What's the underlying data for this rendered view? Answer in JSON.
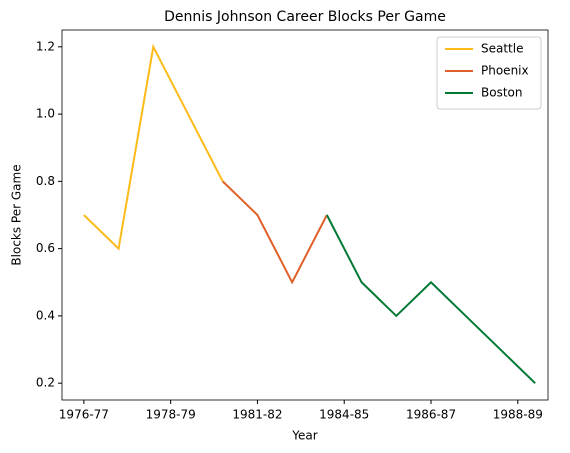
{
  "chart_data": {
    "type": "line",
    "title": "Dennis Johnson Career Blocks Per Game",
    "xlabel": "Year",
    "ylabel": "Blocks Per Game",
    "series": [
      {
        "name": "Seattle",
        "color": "#fdbb1a",
        "x": [
          0,
          1,
          2,
          3,
          4
        ],
        "values": [
          0.7,
          0.6,
          1.2,
          1.0,
          0.8
        ]
      },
      {
        "name": "Phoenix",
        "color": "#e0602a",
        "x": [
          4,
          5,
          6,
          7
        ],
        "values": [
          0.8,
          0.7,
          0.5,
          0.7
        ]
      },
      {
        "name": "Boston",
        "color": "#007a33",
        "x": [
          7,
          8,
          9,
          10,
          11,
          12,
          13
        ],
        "values": [
          0.7,
          0.5,
          0.4,
          0.5,
          0.4,
          0.3,
          0.2
        ]
      }
    ],
    "xlim": [
      -0.63,
      13.37
    ],
    "xticks": [
      {
        "value": 0,
        "label": "1976-77"
      },
      {
        "value": 2.5,
        "label": "1978-79"
      },
      {
        "value": 5,
        "label": "1981-82"
      },
      {
        "value": 7.5,
        "label": "1984-85"
      },
      {
        "value": 10,
        "label": "1986-87"
      },
      {
        "value": 12.5,
        "label": "1988-89"
      }
    ],
    "ylim": [
      0.15,
      1.25
    ],
    "yticks": [
      {
        "value": 0.2,
        "label": "0.2"
      },
      {
        "value": 0.4,
        "label": "0.4"
      },
      {
        "value": 0.6,
        "label": "0.6"
      },
      {
        "value": 0.8,
        "label": "0.8"
      },
      {
        "value": 1.0,
        "label": "1.0"
      },
      {
        "value": 1.2,
        "label": "1.2"
      }
    ],
    "legend": "upper right"
  }
}
